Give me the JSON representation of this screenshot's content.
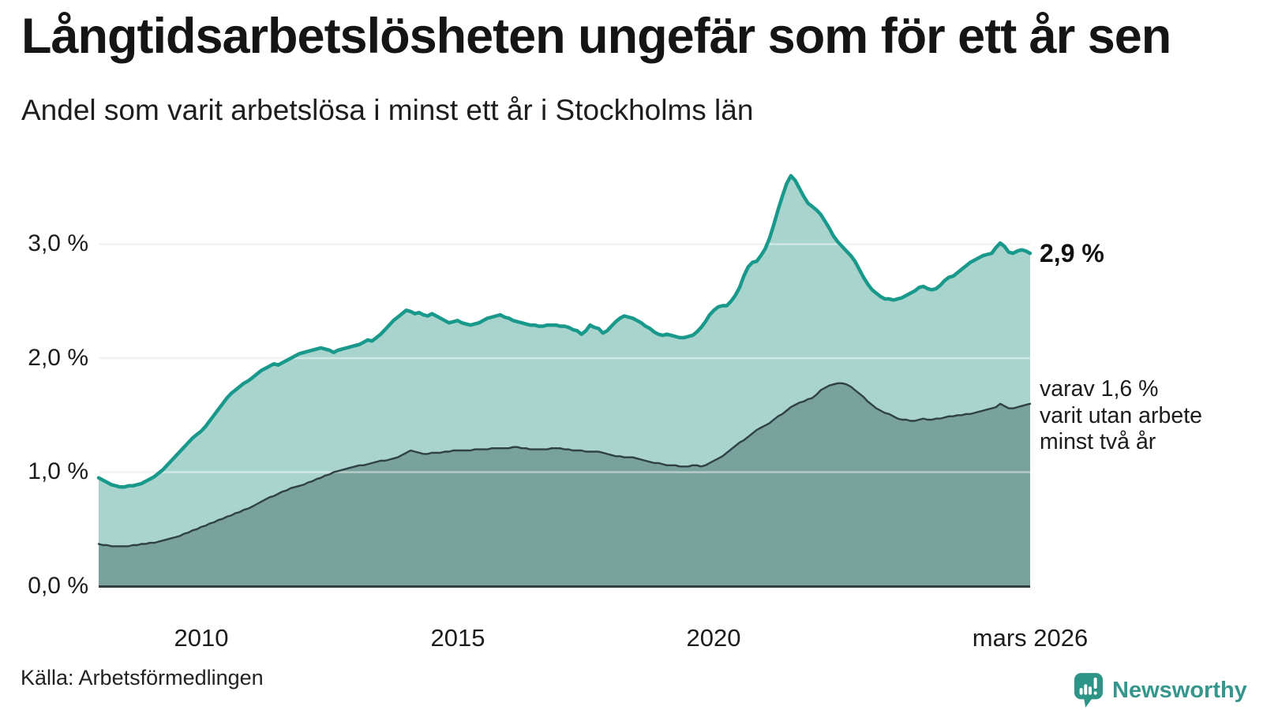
{
  "title": "Långtidsarbetslösheten ungefär som för ett år sen",
  "subtitle": "Andel som varit arbetslösa i minst ett år i Stockholms län",
  "source": "Källa: Arbetsförmedlingen",
  "brand": {
    "name": "Newsworthy",
    "color": "#37968c"
  },
  "annotations": {
    "latest_value_label": "2,9 %",
    "secondary_line1": "varav 1,6 %",
    "secondary_line2": "varit utan arbete",
    "secondary_line3": "minst två år"
  },
  "chart_data": {
    "type": "area",
    "x_start": "2008-01",
    "x_end": "2026-03",
    "x_frequency": "monthly",
    "grid": true,
    "ylim": [
      0,
      3.7
    ],
    "y_tick_labels": [
      "3,0 %",
      "2,0 %",
      "1,0 %",
      "0,0 %"
    ],
    "y_tick_values": [
      3.0,
      2.0,
      1.0,
      0.0
    ],
    "x_ticks": [
      {
        "label": "2010",
        "month_index": 24
      },
      {
        "label": "2015",
        "month_index": 84
      },
      {
        "label": "2020",
        "month_index": 144
      },
      {
        "label": "mars 2026",
        "month_index": 218
      }
    ],
    "series": [
      {
        "name": "Andel arbetslösa minst ett år",
        "line_color": "#18998b",
        "fill_color": "#a9d4cd",
        "line_width": 4.5,
        "last_value": 2.9,
        "values": [
          0.95,
          0.93,
          0.91,
          0.89,
          0.88,
          0.87,
          0.87,
          0.88,
          0.88,
          0.89,
          0.9,
          0.92,
          0.94,
          0.96,
          0.99,
          1.02,
          1.06,
          1.1,
          1.14,
          1.18,
          1.22,
          1.26,
          1.3,
          1.33,
          1.36,
          1.4,
          1.45,
          1.5,
          1.55,
          1.6,
          1.65,
          1.69,
          1.72,
          1.75,
          1.78,
          1.8,
          1.83,
          1.86,
          1.89,
          1.91,
          1.93,
          1.95,
          1.94,
          1.96,
          1.98,
          2.0,
          2.02,
          2.04,
          2.05,
          2.06,
          2.07,
          2.08,
          2.09,
          2.08,
          2.07,
          2.05,
          2.07,
          2.08,
          2.09,
          2.1,
          2.11,
          2.12,
          2.14,
          2.16,
          2.15,
          2.18,
          2.21,
          2.25,
          2.29,
          2.33,
          2.36,
          2.39,
          2.42,
          2.41,
          2.39,
          2.4,
          2.38,
          2.37,
          2.39,
          2.37,
          2.35,
          2.33,
          2.31,
          2.32,
          2.33,
          2.31,
          2.3,
          2.29,
          2.3,
          2.31,
          2.33,
          2.35,
          2.36,
          2.37,
          2.38,
          2.36,
          2.35,
          2.33,
          2.32,
          2.31,
          2.3,
          2.29,
          2.29,
          2.28,
          2.28,
          2.29,
          2.29,
          2.29,
          2.28,
          2.28,
          2.27,
          2.25,
          2.24,
          2.21,
          2.24,
          2.29,
          2.27,
          2.26,
          2.22,
          2.24,
          2.28,
          2.32,
          2.35,
          2.37,
          2.36,
          2.35,
          2.33,
          2.31,
          2.28,
          2.26,
          2.23,
          2.21,
          2.2,
          2.21,
          2.2,
          2.19,
          2.18,
          2.18,
          2.19,
          2.2,
          2.23,
          2.27,
          2.32,
          2.38,
          2.42,
          2.45,
          2.46,
          2.46,
          2.5,
          2.55,
          2.62,
          2.72,
          2.8,
          2.84,
          2.85,
          2.9,
          2.96,
          3.05,
          3.17,
          3.3,
          3.42,
          3.53,
          3.6,
          3.56,
          3.49,
          3.42,
          3.36,
          3.33,
          3.3,
          3.26,
          3.2,
          3.14,
          3.07,
          3.02,
          2.98,
          2.94,
          2.9,
          2.85,
          2.78,
          2.71,
          2.65,
          2.6,
          2.57,
          2.54,
          2.52,
          2.52,
          2.51,
          2.52,
          2.53,
          2.55,
          2.57,
          2.59,
          2.62,
          2.63,
          2.61,
          2.6,
          2.61,
          2.64,
          2.68,
          2.71,
          2.72,
          2.75,
          2.78,
          2.81,
          2.84,
          2.86,
          2.88,
          2.9,
          2.91,
          2.92,
          2.97,
          3.01,
          2.98,
          2.93,
          2.92,
          2.94,
          2.95,
          2.94,
          2.92
        ]
      },
      {
        "name": "varav utan arbete minst två år",
        "line_color": "#2f4147",
        "fill_color": "#78a29b",
        "line_width": 2.4,
        "last_value": 1.6,
        "values": [
          0.37,
          0.36,
          0.36,
          0.35,
          0.35,
          0.35,
          0.35,
          0.35,
          0.36,
          0.36,
          0.37,
          0.37,
          0.38,
          0.38,
          0.39,
          0.4,
          0.41,
          0.42,
          0.43,
          0.44,
          0.46,
          0.47,
          0.49,
          0.5,
          0.52,
          0.53,
          0.55,
          0.56,
          0.58,
          0.59,
          0.61,
          0.62,
          0.64,
          0.65,
          0.67,
          0.68,
          0.7,
          0.72,
          0.74,
          0.76,
          0.78,
          0.79,
          0.81,
          0.83,
          0.84,
          0.86,
          0.87,
          0.88,
          0.89,
          0.91,
          0.92,
          0.94,
          0.95,
          0.97,
          0.98,
          1.0,
          1.01,
          1.02,
          1.03,
          1.04,
          1.05,
          1.06,
          1.06,
          1.07,
          1.08,
          1.09,
          1.1,
          1.1,
          1.11,
          1.12,
          1.13,
          1.15,
          1.17,
          1.19,
          1.18,
          1.17,
          1.16,
          1.16,
          1.17,
          1.17,
          1.17,
          1.18,
          1.18,
          1.19,
          1.19,
          1.19,
          1.19,
          1.19,
          1.2,
          1.2,
          1.2,
          1.2,
          1.21,
          1.21,
          1.21,
          1.21,
          1.21,
          1.22,
          1.22,
          1.21,
          1.21,
          1.2,
          1.2,
          1.2,
          1.2,
          1.2,
          1.21,
          1.21,
          1.21,
          1.2,
          1.2,
          1.19,
          1.19,
          1.19,
          1.18,
          1.18,
          1.18,
          1.18,
          1.17,
          1.16,
          1.15,
          1.14,
          1.14,
          1.13,
          1.13,
          1.13,
          1.12,
          1.11,
          1.1,
          1.09,
          1.08,
          1.08,
          1.07,
          1.06,
          1.06,
          1.06,
          1.05,
          1.05,
          1.05,
          1.06,
          1.06,
          1.05,
          1.06,
          1.08,
          1.1,
          1.12,
          1.14,
          1.17,
          1.2,
          1.23,
          1.26,
          1.28,
          1.31,
          1.34,
          1.37,
          1.39,
          1.41,
          1.43,
          1.46,
          1.49,
          1.51,
          1.54,
          1.57,
          1.59,
          1.61,
          1.62,
          1.64,
          1.65,
          1.68,
          1.72,
          1.74,
          1.76,
          1.77,
          1.78,
          1.78,
          1.77,
          1.75,
          1.72,
          1.69,
          1.66,
          1.62,
          1.59,
          1.56,
          1.54,
          1.52,
          1.51,
          1.49,
          1.47,
          1.46,
          1.46,
          1.45,
          1.45,
          1.46,
          1.47,
          1.46,
          1.46,
          1.47,
          1.47,
          1.48,
          1.49,
          1.49,
          1.5,
          1.5,
          1.51,
          1.51,
          1.52,
          1.53,
          1.54,
          1.55,
          1.56,
          1.57,
          1.6,
          1.58,
          1.56,
          1.56,
          1.57,
          1.58,
          1.59,
          1.6
        ]
      }
    ]
  }
}
